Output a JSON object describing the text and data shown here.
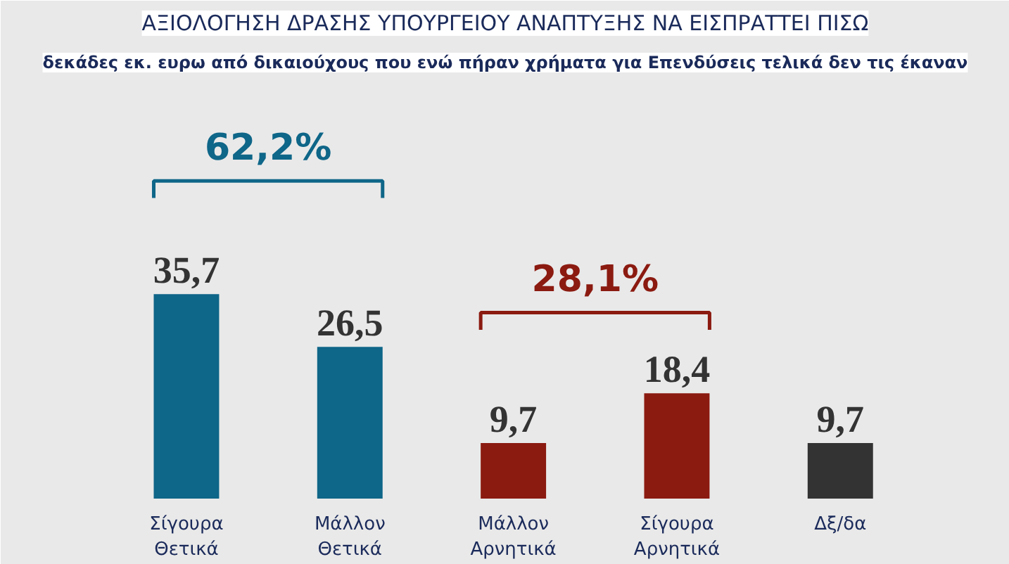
{
  "chart_data": {
    "type": "bar",
    "title": "ΑΞΙΟΛΟΓΗΣΗ ΔΡΑΣΗΣ ΥΠΟΥΡΓΕΙΟΥ ΑΝΑΠΤΥΞΗΣ ΝΑ ΕΙΣΠΡΑΤΤΕΙ ΠΙΣΩ",
    "subtitle": "δεκάδες εκ. ευρω από δικαιούχους που ενώ πήραν χρήματα για Επενδύσεις τελικά δεν τις έκαναν",
    "categories": [
      "Σίγουρα\nΘετικά",
      "Μάλλον\nΘετικά",
      "Μάλλον\nΑρνητικά",
      "Σίγουρα\nΑρνητικά",
      "Δξ/δα"
    ],
    "values": [
      35.7,
      26.5,
      9.7,
      18.4,
      9.7
    ],
    "colors": [
      "#0e6688",
      "#0e6688",
      "#8b1a10",
      "#8b1a10",
      "#333333"
    ],
    "value_labels": [
      "35,7",
      "26,5",
      "9,7",
      "18,4",
      "9,7"
    ],
    "annotations": [
      "62,2%",
      "28,1%"
    ]
  }
}
